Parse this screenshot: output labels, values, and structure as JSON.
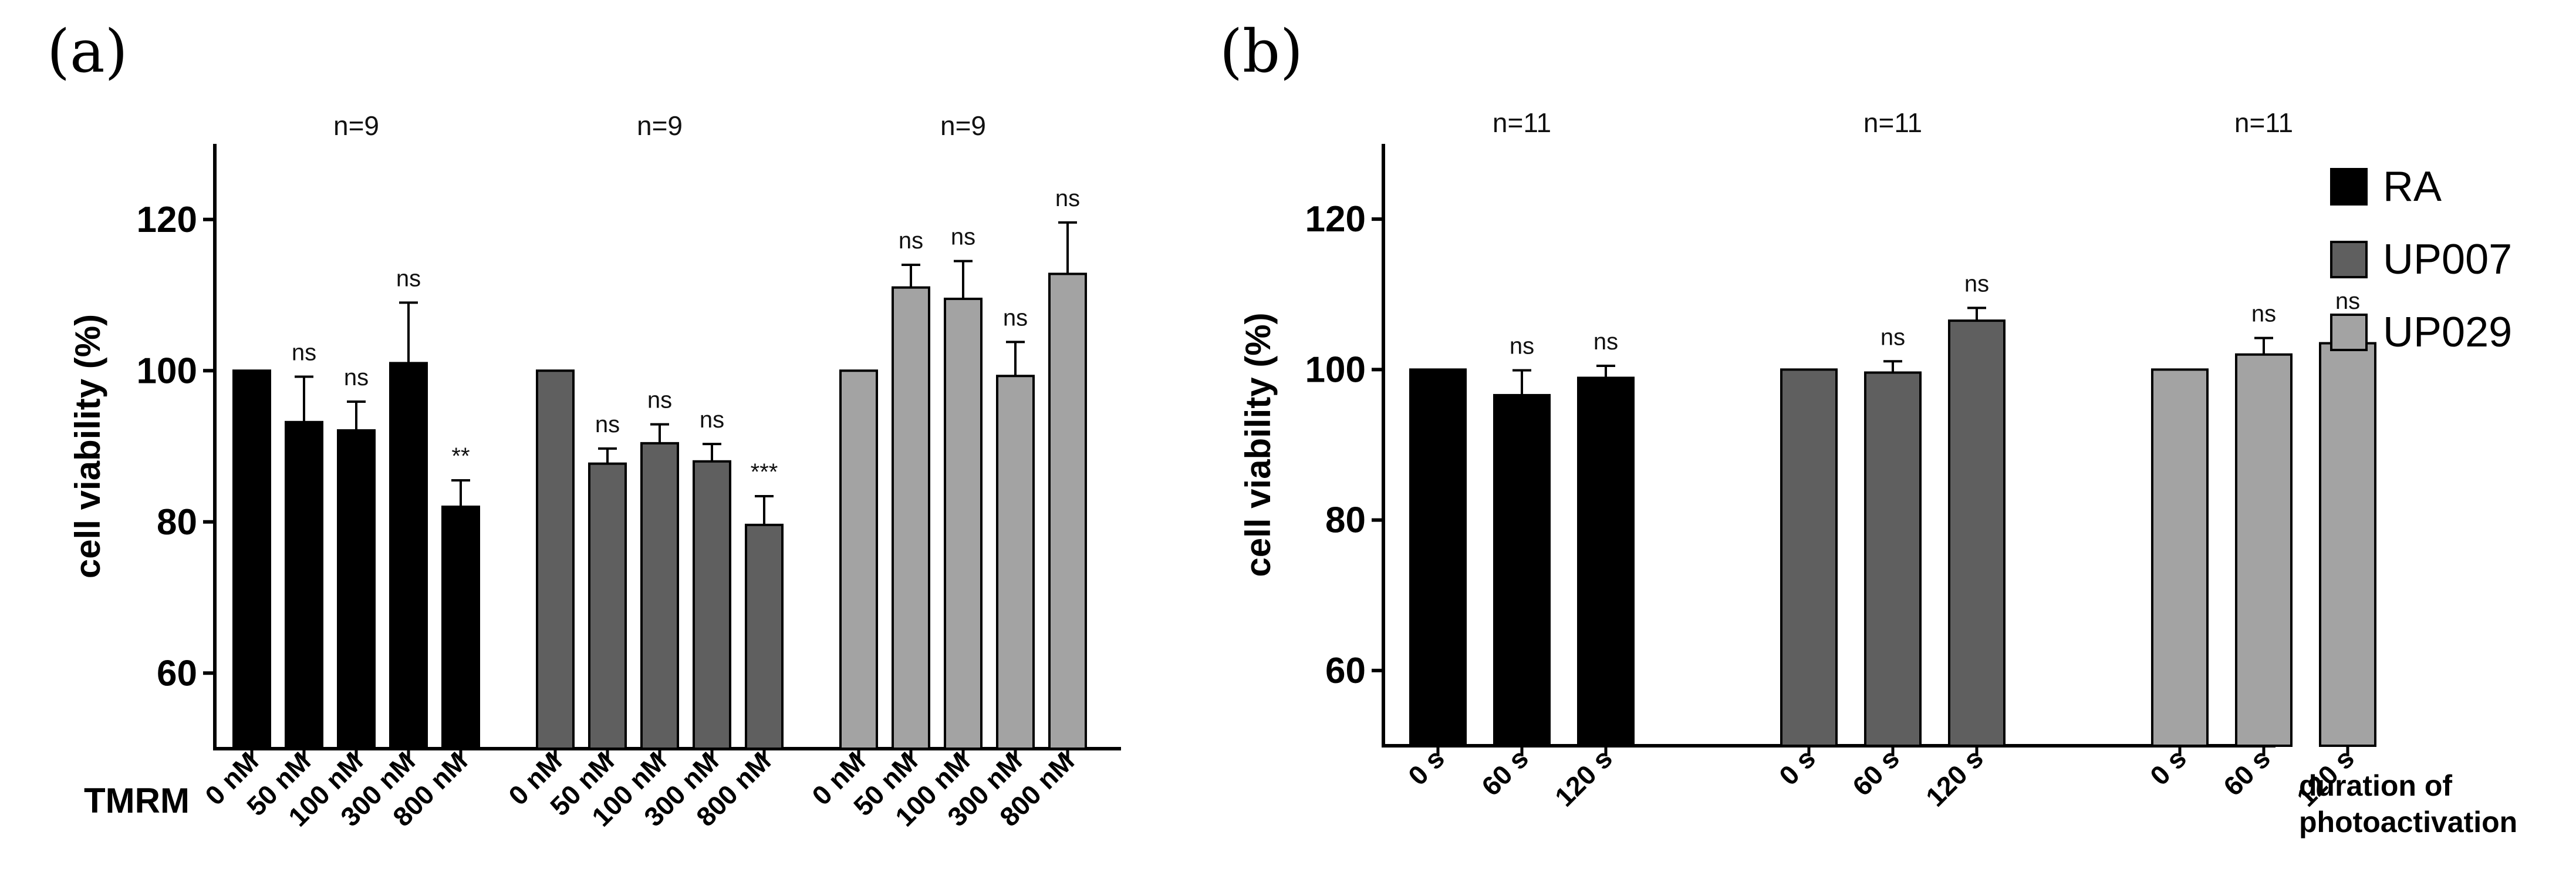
{
  "colors": {
    "RA": "#000000",
    "UP007": "#5f5f5f",
    "UP029": "#a3a3a3"
  },
  "legend": [
    "RA",
    "UP007",
    "UP029"
  ],
  "chart_data": [
    {
      "panel": "(a)",
      "type": "bar",
      "ylabel": "cell viability (%)",
      "xlabel": "TMRM",
      "ylim": [
        50,
        130
      ],
      "yticks": [
        60,
        80,
        100,
        120
      ],
      "groups": [
        {
          "name": "RA",
          "n": "n=9",
          "categories": [
            "0 nM",
            "50 nM",
            "100 nM",
            "300 nM",
            "800 nM"
          ],
          "values": [
            100,
            93.2,
            92.1,
            101,
            82
          ],
          "errors": [
            0,
            6.0,
            3.8,
            8.0,
            3.5
          ],
          "significance": [
            "",
            "ns",
            "ns",
            "ns",
            "**"
          ]
        },
        {
          "name": "UP007",
          "n": "n=9",
          "categories": [
            "0 nM",
            "50 nM",
            "100 nM",
            "300 nM",
            "800 nM"
          ],
          "values": [
            100,
            87.7,
            90.4,
            88,
            79.6
          ],
          "errors": [
            0,
            2.0,
            2.5,
            2.3,
            3.8
          ],
          "significance": [
            "",
            "ns",
            "ns",
            "ns",
            "***"
          ]
        },
        {
          "name": "UP029",
          "n": "n=9",
          "categories": [
            "0 nM",
            "50 nM",
            "100 nM",
            "300 nM",
            "800 nM"
          ],
          "values": [
            100,
            111,
            109.5,
            99.3,
            112.8
          ],
          "errors": [
            0,
            3.0,
            5.0,
            4.5,
            6.8
          ],
          "significance": [
            "",
            "ns",
            "ns",
            "ns",
            "ns"
          ]
        }
      ]
    },
    {
      "panel": "(b)",
      "type": "bar",
      "ylabel": "cell viability (%)",
      "xlabel": "duration of photoactivation",
      "xlabel_lines": [
        "duration of",
        "photoactivation"
      ],
      "ylim": [
        50,
        130
      ],
      "yticks": [
        60,
        80,
        100,
        120
      ],
      "groups": [
        {
          "name": "RA",
          "n": "n=11",
          "categories": [
            "0 s",
            "60 s",
            "120 s"
          ],
          "values": [
            100,
            96.6,
            98.9
          ],
          "errors": [
            0,
            3.3,
            1.6
          ],
          "significance": [
            "",
            "ns",
            "ns"
          ]
        },
        {
          "name": "UP007",
          "n": "n=11",
          "categories": [
            "0 s",
            "60 s",
            "120 s"
          ],
          "values": [
            100,
            99.6,
            106.5
          ],
          "errors": [
            0,
            1.5,
            1.7
          ],
          "significance": [
            "",
            "ns",
            "ns"
          ]
        },
        {
          "name": "UP029",
          "n": "n=11",
          "categories": [
            "0 s",
            "60 s",
            "120 s"
          ],
          "values": [
            100,
            102,
            103.5
          ],
          "errors": [
            0,
            2.2,
            2.4
          ],
          "significance": [
            "",
            "ns",
            "ns"
          ]
        }
      ]
    }
  ]
}
